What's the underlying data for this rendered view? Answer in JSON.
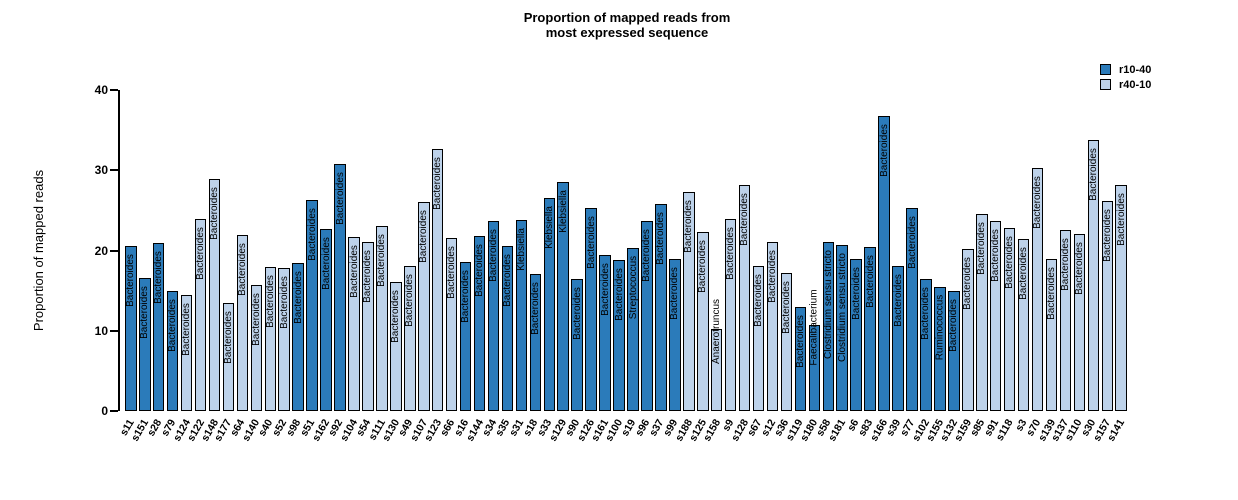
{
  "figure": {
    "title_line1": "Proportion of mapped reads from",
    "title_line2": "most expressed sequence",
    "ylabel": "Proportion of mapped reads"
  },
  "legend": {
    "items": [
      {
        "label": "r10-40",
        "color": "#2B7BBA"
      },
      {
        "label": "r40-10",
        "color": "#BDD2EA"
      }
    ]
  },
  "chart_data": {
    "type": "bar",
    "title": "Proportion of mapped reads from most expressed sequence",
    "xlabel": "",
    "ylabel": "Proportion of mapped reads",
    "ylim": [
      0,
      40
    ],
    "yticks": [
      0,
      10,
      20,
      30,
      40
    ],
    "grid": false,
    "legend_position": "top-right",
    "series_colors": {
      "r10-40": "#2B7BBA",
      "r40-10": "#BDD2EA"
    },
    "bar_border_color": "#000000",
    "bars": [
      {
        "sample": "s11",
        "taxon": "Bacteroides",
        "value": 20.5,
        "group": "r10-40"
      },
      {
        "sample": "s151",
        "taxon": "Bacteroides",
        "value": 16.6,
        "group": "r10-40"
      },
      {
        "sample": "s28",
        "taxon": "Bacteroides",
        "value": 20.9,
        "group": "r10-40"
      },
      {
        "sample": "s79",
        "taxon": "Bacteroides",
        "value": 14.9,
        "group": "r10-40"
      },
      {
        "sample": "s124",
        "taxon": "Bacteroides",
        "value": 14.5,
        "group": "r40-10"
      },
      {
        "sample": "s122",
        "taxon": "Bacteroides",
        "value": 23.9,
        "group": "r40-10"
      },
      {
        "sample": "s148",
        "taxon": "Bacteroides",
        "value": 28.9,
        "group": "r40-10"
      },
      {
        "sample": "s177",
        "taxon": "Bacteroides",
        "value": 13.4,
        "group": "r40-10"
      },
      {
        "sample": "s64",
        "taxon": "Bacteroides",
        "value": 21.9,
        "group": "r40-10"
      },
      {
        "sample": "s140",
        "taxon": "Bacteroides",
        "value": 15.7,
        "group": "r40-10"
      },
      {
        "sample": "s40",
        "taxon": "Bacteroides",
        "value": 18.0,
        "group": "r40-10"
      },
      {
        "sample": "s52",
        "taxon": "Bacteroides",
        "value": 17.8,
        "group": "r40-10"
      },
      {
        "sample": "s98",
        "taxon": "Bacteroides",
        "value": 18.4,
        "group": "r10-40"
      },
      {
        "sample": "s51",
        "taxon": "Bacteroides",
        "value": 26.3,
        "group": "r10-40"
      },
      {
        "sample": "s162",
        "taxon": "Bacteroides",
        "value": 22.7,
        "group": "r10-40"
      },
      {
        "sample": "s92",
        "taxon": "Bacteroides",
        "value": 30.8,
        "group": "r10-40"
      },
      {
        "sample": "s104",
        "taxon": "Bacteroides",
        "value": 21.7,
        "group": "r40-10"
      },
      {
        "sample": "s54",
        "taxon": "Bacteroides",
        "value": 21.1,
        "group": "r40-10"
      },
      {
        "sample": "s111",
        "taxon": "Bacteroides",
        "value": 23.0,
        "group": "r40-10"
      },
      {
        "sample": "s130",
        "taxon": "Bacteroides",
        "value": 16.1,
        "group": "r40-10"
      },
      {
        "sample": "s49",
        "taxon": "Bacteroides",
        "value": 18.1,
        "group": "r40-10"
      },
      {
        "sample": "s107",
        "taxon": "Bacteroides",
        "value": 26.1,
        "group": "r40-10"
      },
      {
        "sample": "s123",
        "taxon": "Bacteroides",
        "value": 32.7,
        "group": "r40-10"
      },
      {
        "sample": "s66",
        "taxon": "Bacteroides",
        "value": 21.5,
        "group": "r40-10"
      },
      {
        "sample": "s16",
        "taxon": "Bacteroides",
        "value": 18.6,
        "group": "r10-40"
      },
      {
        "sample": "s144",
        "taxon": "Bacteroides",
        "value": 21.8,
        "group": "r10-40"
      },
      {
        "sample": "s34",
        "taxon": "Bacteroides",
        "value": 23.7,
        "group": "r10-40"
      },
      {
        "sample": "s35",
        "taxon": "Bacteroides",
        "value": 20.6,
        "group": "r10-40"
      },
      {
        "sample": "s31",
        "taxon": "Klebsiella",
        "value": 23.8,
        "group": "r10-40"
      },
      {
        "sample": "s18",
        "taxon": "Bacteroides",
        "value": 17.1,
        "group": "r10-40"
      },
      {
        "sample": "s33",
        "taxon": "Klebsiella",
        "value": 26.5,
        "group": "r10-40"
      },
      {
        "sample": "s129",
        "taxon": "Klebsiella",
        "value": 28.5,
        "group": "r10-40"
      },
      {
        "sample": "s90",
        "taxon": "Bacteroides",
        "value": 16.4,
        "group": "r10-40"
      },
      {
        "sample": "s126",
        "taxon": "Bacteroides",
        "value": 25.3,
        "group": "r10-40"
      },
      {
        "sample": "s161",
        "taxon": "Bacteroides",
        "value": 19.4,
        "group": "r10-40"
      },
      {
        "sample": "s100",
        "taxon": "Bacteroides",
        "value": 18.8,
        "group": "r10-40"
      },
      {
        "sample": "s19",
        "taxon": "Streptococcus",
        "value": 20.3,
        "group": "r10-40"
      },
      {
        "sample": "s96",
        "taxon": "Bacteroides",
        "value": 23.7,
        "group": "r10-40"
      },
      {
        "sample": "s37",
        "taxon": "Bacteroides",
        "value": 25.8,
        "group": "r10-40"
      },
      {
        "sample": "s99",
        "taxon": "Bacteroides",
        "value": 19.0,
        "group": "r10-40"
      },
      {
        "sample": "s188",
        "taxon": "Bacteroides",
        "value": 27.3,
        "group": "r40-10"
      },
      {
        "sample": "s125",
        "taxon": "Bacteroides",
        "value": 22.3,
        "group": "r40-10"
      },
      {
        "sample": "s158",
        "taxon": "Anaerotruncus",
        "value": 10.2,
        "group": "r40-10"
      },
      {
        "sample": "s9",
        "taxon": "Bacteroides",
        "value": 23.9,
        "group": "r40-10"
      },
      {
        "sample": "s128",
        "taxon": "Bacteroides",
        "value": 28.2,
        "group": "r40-10"
      },
      {
        "sample": "s67",
        "taxon": "Bacteroides",
        "value": 18.1,
        "group": "r40-10"
      },
      {
        "sample": "s12",
        "taxon": "Bacteroides",
        "value": 21.0,
        "group": "r40-10"
      },
      {
        "sample": "s36",
        "taxon": "Bacteroides",
        "value": 17.2,
        "group": "r40-10"
      },
      {
        "sample": "s119",
        "taxon": "Bacteroides",
        "value": 12.9,
        "group": "r10-40"
      },
      {
        "sample": "s180",
        "taxon": "Faecalibacterium",
        "value": 10.7,
        "group": "r10-40"
      },
      {
        "sample": "s58",
        "taxon": "Clostridium sensu stricto",
        "value": 21.0,
        "group": "r10-40"
      },
      {
        "sample": "s181",
        "taxon": "Clostridium sensu stricto",
        "value": 20.7,
        "group": "r10-40"
      },
      {
        "sample": "s6",
        "taxon": "Bacteroides",
        "value": 19.0,
        "group": "r10-40"
      },
      {
        "sample": "s83",
        "taxon": "Bacteroides",
        "value": 20.4,
        "group": "r10-40"
      },
      {
        "sample": "s166",
        "taxon": "Bacteroides",
        "value": 36.8,
        "group": "r10-40"
      },
      {
        "sample": "s39",
        "taxon": "Bacteroides",
        "value": 18.1,
        "group": "r10-40"
      },
      {
        "sample": "s77",
        "taxon": "Bacteroides",
        "value": 25.3,
        "group": "r10-40"
      },
      {
        "sample": "s102",
        "taxon": "Bacteroides",
        "value": 16.5,
        "group": "r10-40"
      },
      {
        "sample": "s155",
        "taxon": "Ruminococcus",
        "value": 15.5,
        "group": "r10-40"
      },
      {
        "sample": "s132",
        "taxon": "Bacteroides",
        "value": 15.0,
        "group": "r10-40"
      },
      {
        "sample": "s159",
        "taxon": "Bacteroides",
        "value": 20.2,
        "group": "r40-10"
      },
      {
        "sample": "s85",
        "taxon": "Bacteroides",
        "value": 24.6,
        "group": "r40-10"
      },
      {
        "sample": "s91",
        "taxon": "Bacteroides",
        "value": 23.7,
        "group": "r40-10"
      },
      {
        "sample": "s118",
        "taxon": "Bacteroides",
        "value": 22.8,
        "group": "r40-10"
      },
      {
        "sample": "s3",
        "taxon": "Bacteroides",
        "value": 21.4,
        "group": "r40-10"
      },
      {
        "sample": "s70",
        "taxon": "Bacteroides",
        "value": 30.3,
        "group": "r40-10"
      },
      {
        "sample": "s139",
        "taxon": "Bacteroides",
        "value": 19.0,
        "group": "r40-10"
      },
      {
        "sample": "s137",
        "taxon": "Bacteroides",
        "value": 22.6,
        "group": "r40-10"
      },
      {
        "sample": "s110",
        "taxon": "Bacteroides",
        "value": 22.1,
        "group": "r40-10"
      },
      {
        "sample": "s30",
        "taxon": "Bacteroides",
        "value": 33.8,
        "group": "r40-10"
      },
      {
        "sample": "s157",
        "taxon": "Bacteroides",
        "value": 26.2,
        "group": "r40-10"
      },
      {
        "sample": "s141",
        "taxon": "Bacteroides",
        "value": 28.2,
        "group": "r40-10"
      }
    ]
  }
}
